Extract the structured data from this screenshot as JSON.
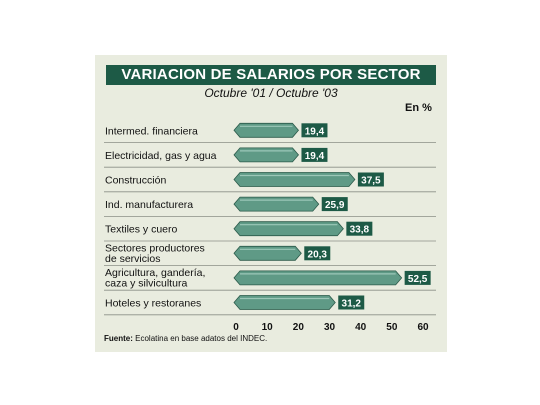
{
  "title": "VARIACION DE SALARIOS POR SECTOR",
  "subtitle": "Octubre '01 / Octubre '03",
  "unit": "En %",
  "source_label": "Fuente:",
  "source_text": "Ecolatina en base adatos del INDEC.",
  "colors": {
    "header": "#1d5a46",
    "panel": "#e9ecdf",
    "bar": "#5f9a86",
    "label_box": "#1d5a46"
  },
  "chart_data": {
    "type": "bar",
    "orientation": "horizontal",
    "title": "VARIACION DE SALARIOS POR SECTOR",
    "subtitle": "Octubre '01 / Octubre '03",
    "ylabel": "En %",
    "categories": [
      [
        "Intermed. financiera"
      ],
      [
        "Electricidad, gas y agua"
      ],
      [
        "Construcción"
      ],
      [
        "Ind. manufacturera"
      ],
      [
        "Textiles y cuero"
      ],
      [
        "Sectores productores",
        "de servicios"
      ],
      [
        "Agricultura, gandería,",
        "caza y silvicultura"
      ],
      [
        "Hoteles y restoranes"
      ]
    ],
    "values": [
      19.4,
      19.4,
      37.5,
      25.9,
      33.8,
      20.3,
      52.5,
      31.2
    ],
    "value_labels": [
      "19,4",
      "19,4",
      "37,5",
      "25,9",
      "33,8",
      "20,3",
      "52,5",
      "31,2"
    ],
    "xticks": [
      "0",
      "10",
      "20",
      "30",
      "40",
      "50",
      "60"
    ],
    "xlim": [
      0,
      60
    ],
    "grid": false
  }
}
